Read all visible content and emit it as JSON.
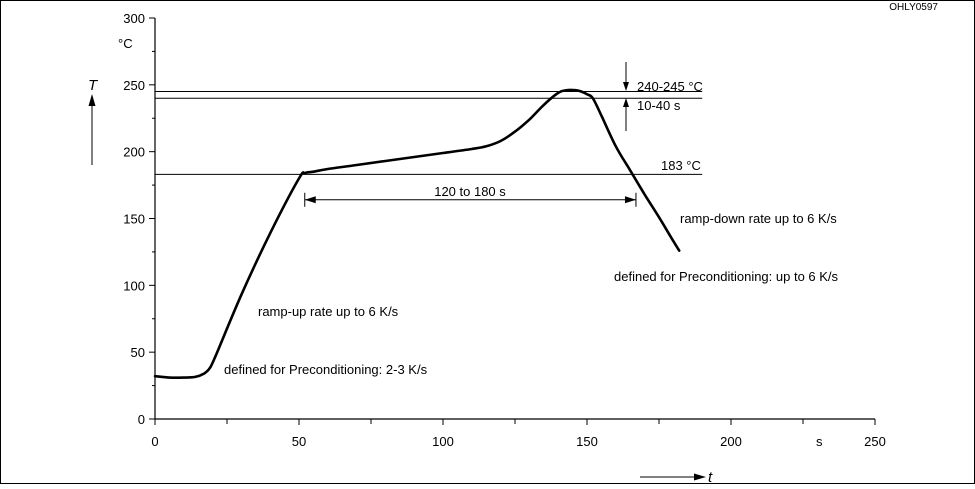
{
  "figure_id": "OHLY0597",
  "chart_data": {
    "type": "line",
    "xlabel": "t",
    "ylabel": "T",
    "xunit": "s",
    "yunit": "°C",
    "xlim": [
      0,
      250
    ],
    "ylim": [
      0,
      300
    ],
    "x_ticks": [
      0,
      50,
      100,
      150,
      200,
      250
    ],
    "x_tick_labels": [
      "0",
      "50",
      "100",
      "150",
      "200",
      "250"
    ],
    "x_minor_ticks": [
      25,
      75,
      125,
      175,
      225
    ],
    "y_ticks": [
      0,
      50,
      100,
      150,
      200,
      250,
      300
    ],
    "y_tick_labels": [
      "0",
      "50",
      "100",
      "150",
      "200",
      "250",
      "300"
    ],
    "y_minor_ticks": [
      25,
      75,
      125,
      175,
      225,
      275
    ],
    "grid": false,
    "series": [
      {
        "x": [
          0,
          5,
          10,
          14,
          17,
          19,
          21,
          30,
          40,
          50,
          52,
          55,
          60,
          70,
          80,
          90,
          100,
          110,
          115,
          120,
          125,
          130,
          135,
          140,
          143,
          146,
          148,
          150,
          152,
          155,
          160,
          165,
          170,
          175,
          180,
          182
        ],
        "y": [
          32,
          31,
          31,
          31.5,
          34,
          38,
          47,
          93,
          139,
          180,
          184,
          185,
          187,
          190,
          193,
          196,
          199,
          202,
          204,
          208,
          215,
          224,
          235,
          244,
          246,
          246,
          245,
          243,
          240,
          227,
          204,
          186,
          168,
          151,
          133,
          126
        ]
      }
    ],
    "reference_lines": [
      {
        "value": 245,
        "x_end": 190,
        "label": "240-245 °C"
      },
      {
        "value": 240,
        "x_end": 190,
        "label": "10-40 s"
      },
      {
        "value": 183,
        "x_end": 190,
        "label": "183 °C"
      }
    ],
    "duration_span": {
      "from": 52,
      "to": 167,
      "y": 164,
      "label": "120 to 180 s"
    },
    "annotations": [
      "ramp-up rate up to 6 K/s",
      "defined for Preconditioning: 2-3 K/s",
      "ramp-down rate up to 6 K/s",
      "defined for Preconditioning: up to 6 K/s"
    ]
  }
}
